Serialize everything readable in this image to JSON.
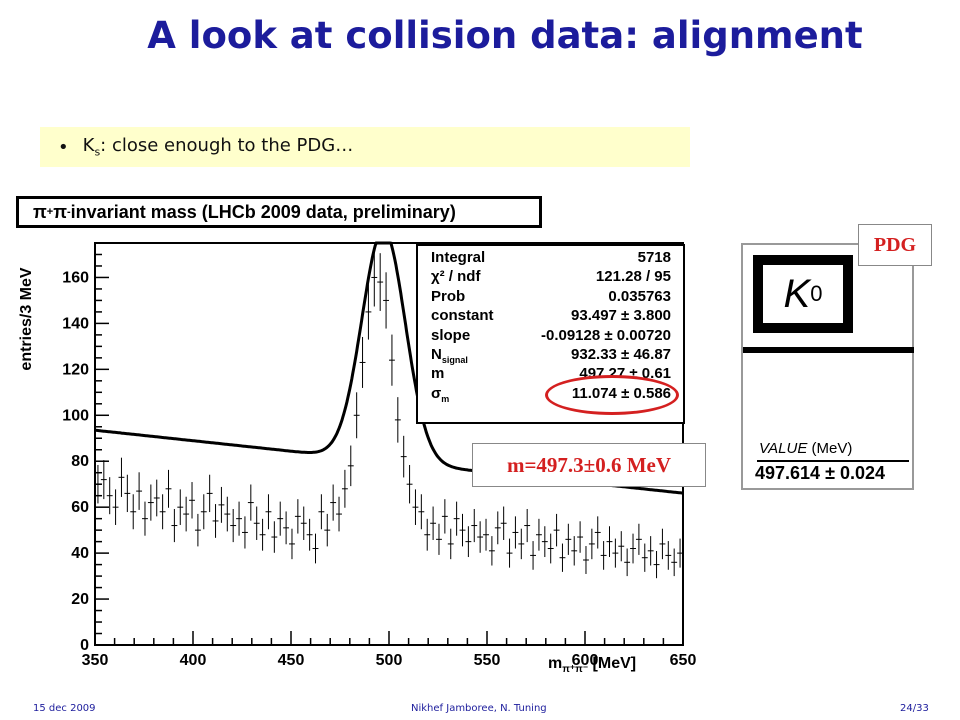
{
  "slide": {
    "title": "A look at collision data: alignment",
    "bullet_main": "K",
    "bullet_sub": "s",
    "bullet_rest": ": close enough to the PDG…"
  },
  "plot": {
    "title_pi_plus": "π",
    "title_plus": "+",
    "title_pi_minus": " π",
    "title_minus": "-",
    "title_rest": " invariant mass (LHCb 2009 data, preliminary)",
    "ylabel": "entries/3 MeV",
    "xlabel_m": "m",
    "xlabel_sub": "π⁺π⁻",
    "xlabel_unit": " [MeV]"
  },
  "fit_stats": [
    {
      "name": "Integral",
      "value": "5718"
    },
    {
      "name": "χ² / ndf",
      "value": "121.28 / 95"
    },
    {
      "name": "Prob",
      "value": "0.035763"
    },
    {
      "name": "constant",
      "value": "93.497 ± 3.800"
    },
    {
      "name": "slope",
      "value": "-0.09128 ± 0.00720"
    },
    {
      "name": "N",
      "sub": "signal",
      "value": "932.33 ± 46.87"
    },
    {
      "name": "m",
      "value": "497.27 ± 0.61"
    },
    {
      "name": "σ",
      "sub": "m",
      "value": "11.074 ± 0.586"
    }
  ],
  "annotation": "m=497.3±0.6 MeV",
  "pdg": {
    "tag": "PDG",
    "particle": "K",
    "charge": "0",
    "value_label": "VALUE",
    "value_unit": " (MeV)",
    "value": "497.614 ± 0.024"
  },
  "footer": {
    "date": "15 dec 2009",
    "author": "Nikhef Jamboree, N. Tuning",
    "page": "24/33"
  },
  "chart_data": {
    "type": "scatter",
    "title": "π+ π- invariant mass (LHCb 2009 data, preliminary)",
    "xlabel": "m π+π- [MeV]",
    "ylabel": "entries/3 MeV",
    "xlim": [
      350,
      650
    ],
    "ylim": [
      0,
      175
    ],
    "xticks": [
      350,
      400,
      450,
      500,
      550,
      600,
      650
    ],
    "yticks": [
      0,
      20,
      40,
      60,
      80,
      100,
      120,
      140,
      160
    ],
    "fit": {
      "constant": 93.497,
      "slope": -0.09128,
      "N_signal": 932.33,
      "m": 497.27,
      "sigma_m": 11.074,
      "bin_width": 3
    },
    "series": [
      {
        "x": [
          351.5,
          354.5,
          357.5,
          360.5,
          363.5,
          366.5,
          369.5,
          372.5,
          375.5,
          378.5,
          381.5,
          384.5,
          387.5,
          390.5,
          393.5,
          396.5,
          399.5,
          402.5,
          405.5,
          408.5,
          411.5,
          414.5,
          417.5,
          420.5,
          423.5,
          426.5,
          429.5,
          432.5,
          435.5,
          438.5,
          441.5,
          444.5,
          447.5,
          450.5,
          453.5,
          456.5,
          459.5,
          462.5,
          465.5,
          468.5,
          471.5,
          474.5,
          477.5,
          480.5,
          483.5,
          486.5,
          489.5,
          492.5,
          495.5,
          498.5,
          501.5,
          504.5,
          507.5,
          510.5,
          513.5,
          516.5,
          519.5,
          522.5,
          525.5,
          528.5,
          531.5,
          534.5,
          537.5,
          540.5,
          543.5,
          546.5,
          549.5,
          552.5,
          555.5,
          558.5,
          561.5,
          564.5,
          567.5,
          570.5,
          573.5,
          576.5,
          579.5,
          582.5,
          585.5,
          588.5,
          591.5,
          594.5,
          597.5,
          600.5,
          603.5,
          606.5,
          609.5,
          612.5,
          615.5,
          618.5,
          621.5,
          624.5,
          627.5,
          630.5,
          633.5,
          636.5,
          639.5,
          642.5,
          645.5,
          648.5
        ],
        "y": [
          70,
          72,
          65,
          60,
          73,
          66,
          58,
          67,
          55,
          62,
          64,
          58,
          68,
          52,
          60,
          57,
          63,
          50,
          58,
          66,
          54,
          61,
          57,
          52,
          55,
          49,
          62,
          53,
          48,
          58,
          47,
          55,
          51,
          44,
          56,
          53,
          48,
          42,
          58,
          50,
          62,
          57,
          68,
          78,
          100,
          123,
          145,
          160,
          158,
          150,
          124,
          98,
          82,
          70,
          60,
          58,
          48,
          53,
          46,
          56,
          44,
          55,
          50,
          45,
          52,
          47,
          48,
          41,
          51,
          53,
          40,
          49,
          44,
          52,
          39,
          48,
          45,
          42,
          50,
          38,
          46,
          41,
          47,
          37,
          44,
          49,
          39,
          45,
          40,
          43,
          36,
          42,
          46,
          38,
          41,
          35,
          44,
          39,
          36,
          40
        ]
      }
    ]
  }
}
